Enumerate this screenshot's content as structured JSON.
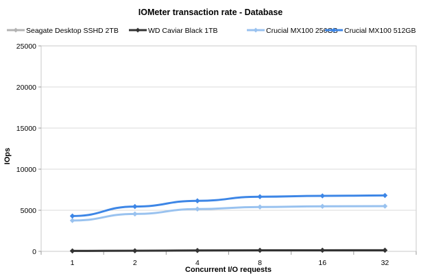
{
  "chart_data": {
    "type": "line",
    "title": "IOMeter  transaction  rate - Database",
    "xlabel": "Concurrent I/O requests",
    "ylabel": "IOps",
    "categories": [
      "1",
      "2",
      "4",
      "8",
      "16",
      "32"
    ],
    "ylim": [
      0,
      25000
    ],
    "yticks": [
      0,
      5000,
      10000,
      15000,
      20000,
      25000
    ],
    "grid": true,
    "legend_position": "top",
    "series": [
      {
        "name": "Seagate Desktop  SSHD  2TB",
        "color": "#b3b3b3",
        "values": [
          60,
          80,
          120,
          140,
          150,
          160
        ]
      },
      {
        "name": "WD Caviar  Black  1TB",
        "color": "#333333",
        "values": [
          50,
          70,
          100,
          120,
          130,
          130
        ]
      },
      {
        "name": "Crucial  MX100  256GB",
        "color": "#99c2ef",
        "values": [
          3750,
          4550,
          5150,
          5400,
          5480,
          5500
        ]
      },
      {
        "name": "Crucial  MX100  512GB",
        "color": "#3d86e6",
        "values": [
          4300,
          5450,
          6150,
          6650,
          6750,
          6800
        ]
      }
    ]
  }
}
